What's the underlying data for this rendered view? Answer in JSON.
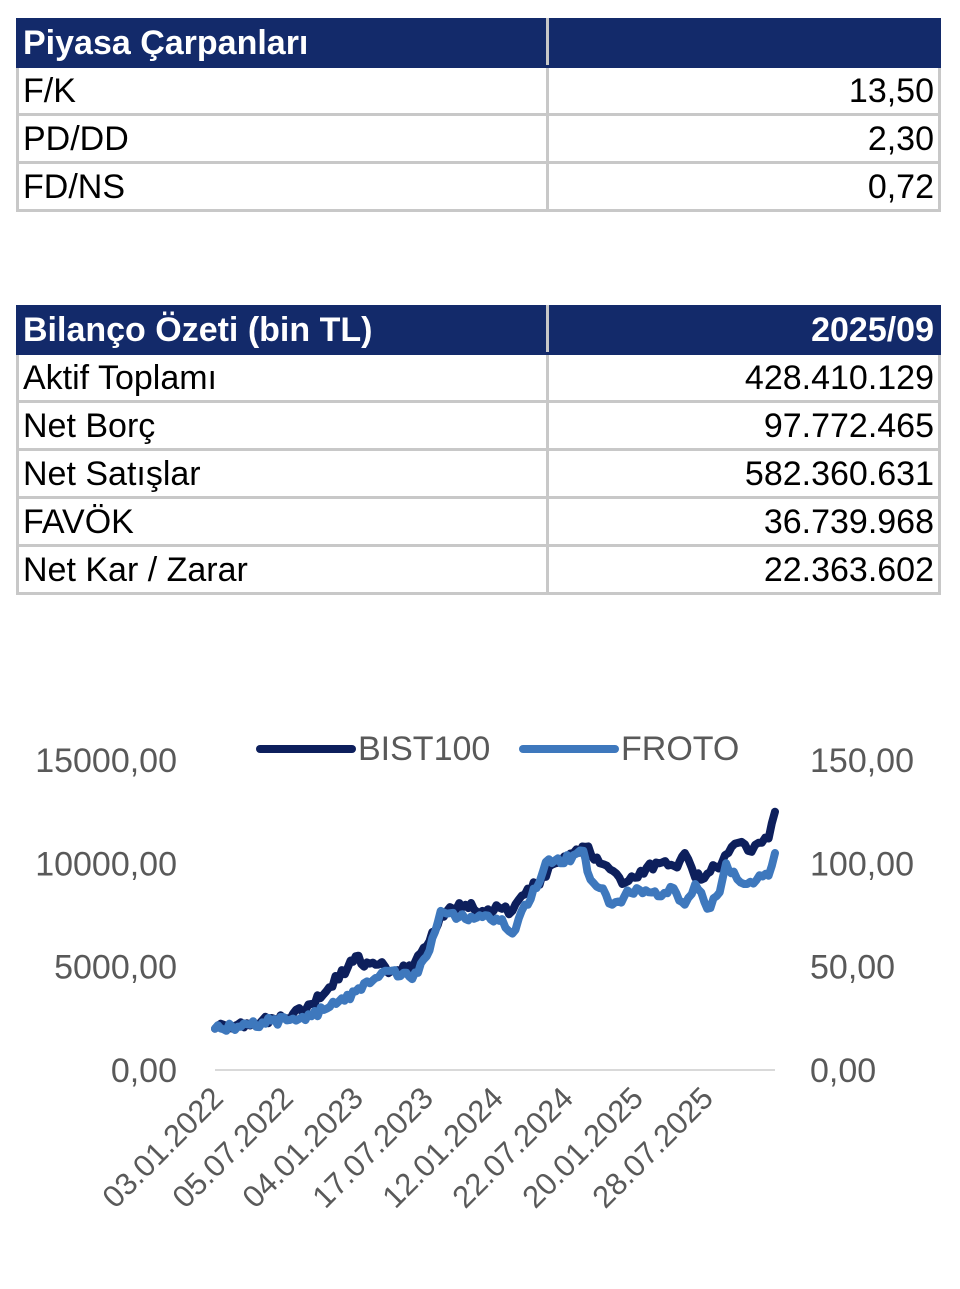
{
  "market_multiples": {
    "title": "Piyasa Çarpanları",
    "rows": [
      {
        "label": "F/K",
        "value": "13,50"
      },
      {
        "label": "PD/DD",
        "value": "2,30"
      },
      {
        "label": "FD/NS",
        "value": "0,72"
      }
    ]
  },
  "balance_summary": {
    "title": "Bilanço Özeti (bin TL)",
    "period": "2025/09",
    "rows": [
      {
        "label": "Aktif Toplamı",
        "value": "428.410.129"
      },
      {
        "label": "Net Borç",
        "value": "97.772.465"
      },
      {
        "label": "Net Satışlar",
        "value": "582.360.631"
      },
      {
        "label": "FAVÖK",
        "value": "36.739.968"
      },
      {
        "label": "Net Kar / Zarar",
        "value": "22.363.602"
      }
    ]
  },
  "colors": {
    "header_bg": "#132a6a",
    "bist100": "#0d1f5c",
    "froto": "#3e78bd"
  },
  "chart_data": {
    "type": "line",
    "title": "",
    "x_tick_labels": [
      "03.01.2022",
      "05.07.2022",
      "04.01.2023",
      "17.07.2023",
      "12.01.2024",
      "22.07.2024",
      "20.01.2025",
      "28.07.2025"
    ],
    "x_range": [
      "2022-01-03",
      "2025-10-31"
    ],
    "legend_position": "top",
    "grid": false,
    "left_axis": {
      "range": [
        0,
        15000
      ],
      "tick_labels": [
        "0,00",
        "5000,00",
        "10000,00",
        "15000,00"
      ]
    },
    "right_axis": {
      "range": [
        0,
        150
      ],
      "tick_labels": [
        "0,00",
        "50,00",
        "100,00",
        "150,00"
      ]
    },
    "series": [
      {
        "name": "BIST100",
        "axis": "left",
        "points": [
          [
            "2022-01-03",
            2000
          ],
          [
            "2022-03-01",
            2200
          ],
          [
            "2022-05-01",
            2400
          ],
          [
            "2022-07-01",
            2500
          ],
          [
            "2022-09-01",
            3200
          ],
          [
            "2022-10-15",
            4000
          ],
          [
            "2022-12-01",
            5000
          ],
          [
            "2022-12-20",
            5500
          ],
          [
            "2023-01-10",
            5000
          ],
          [
            "2023-02-15",
            5100
          ],
          [
            "2023-03-20",
            4800
          ],
          [
            "2023-05-10",
            4900
          ],
          [
            "2023-06-15",
            6000
          ],
          [
            "2023-07-20",
            7500
          ],
          [
            "2023-08-20",
            7800
          ],
          [
            "2023-09-20",
            8000
          ],
          [
            "2023-11-01",
            7700
          ],
          [
            "2023-12-20",
            7800
          ],
          [
            "2024-01-15",
            7700
          ],
          [
            "2024-02-15",
            8500
          ],
          [
            "2024-03-15",
            9000
          ],
          [
            "2024-05-01",
            10000
          ],
          [
            "2024-06-15",
            10500
          ],
          [
            "2024-07-15",
            10800
          ],
          [
            "2024-08-20",
            10000
          ],
          [
            "2024-09-15",
            9700
          ],
          [
            "2024-10-15",
            9000
          ],
          [
            "2024-11-15",
            9300
          ],
          [
            "2024-12-15",
            9800
          ],
          [
            "2025-01-15",
            10000
          ],
          [
            "2025-03-01",
            9800
          ],
          [
            "2025-03-20",
            10500
          ],
          [
            "2025-04-15",
            9300
          ],
          [
            "2025-05-15",
            9500
          ],
          [
            "2025-06-20",
            10000
          ],
          [
            "2025-07-15",
            10800
          ],
          [
            "2025-08-01",
            11000
          ],
          [
            "2025-08-25",
            10600
          ],
          [
            "2025-09-20",
            11000
          ],
          [
            "2025-10-15",
            11200
          ],
          [
            "2025-10-31",
            12500
          ]
        ]
      },
      {
        "name": "FROTO",
        "axis": "right",
        "points": [
          [
            "2022-01-03",
            20
          ],
          [
            "2022-03-01",
            21
          ],
          [
            "2022-05-01",
            23
          ],
          [
            "2022-07-01",
            24
          ],
          [
            "2022-09-01",
            26
          ],
          [
            "2022-11-01",
            32
          ],
          [
            "2022-12-20",
            38
          ],
          [
            "2023-01-10",
            42
          ],
          [
            "2023-02-15",
            45
          ],
          [
            "2023-03-20",
            48
          ],
          [
            "2023-05-10",
            44
          ],
          [
            "2023-06-15",
            55
          ],
          [
            "2023-07-20",
            77
          ],
          [
            "2023-08-20",
            76
          ],
          [
            "2023-09-20",
            73
          ],
          [
            "2023-11-01",
            74
          ],
          [
            "2023-12-20",
            73
          ],
          [
            "2024-01-15",
            66
          ],
          [
            "2024-02-15",
            80
          ],
          [
            "2024-03-15",
            88
          ],
          [
            "2024-04-15",
            102
          ],
          [
            "2024-05-15",
            100
          ],
          [
            "2024-06-15",
            104
          ],
          [
            "2024-07-10",
            106
          ],
          [
            "2024-07-20",
            96
          ],
          [
            "2024-08-20",
            88
          ],
          [
            "2024-09-20",
            80
          ],
          [
            "2024-10-20",
            84
          ],
          [
            "2024-11-20",
            88
          ],
          [
            "2024-12-20",
            86
          ],
          [
            "2025-01-20",
            84
          ],
          [
            "2025-02-20",
            88
          ],
          [
            "2025-03-20",
            80
          ],
          [
            "2025-04-15",
            90
          ],
          [
            "2025-05-15",
            78
          ],
          [
            "2025-06-15",
            86
          ],
          [
            "2025-07-01",
            100
          ],
          [
            "2025-07-20",
            96
          ],
          [
            "2025-08-15",
            90
          ],
          [
            "2025-09-15",
            92
          ],
          [
            "2025-10-15",
            94
          ],
          [
            "2025-10-31",
            105
          ]
        ]
      }
    ]
  }
}
